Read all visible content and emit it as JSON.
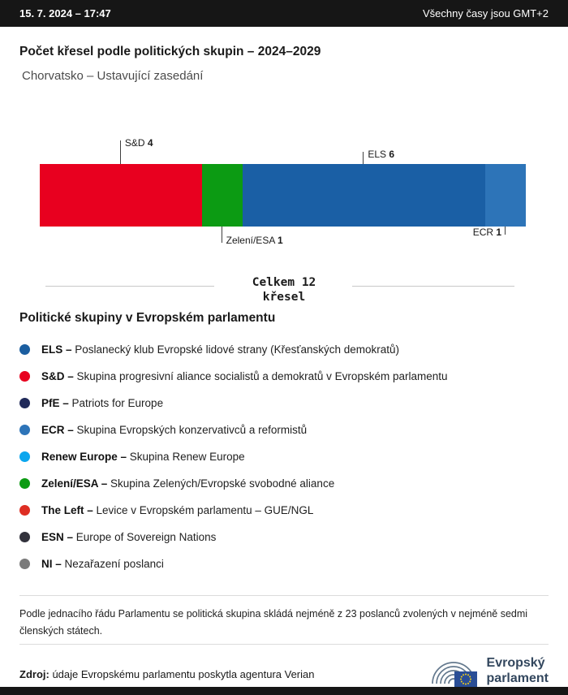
{
  "topbar": {
    "datetime": "15. 7. 2024 – 17:47",
    "timezone_note": "Všechny časy jsou GMT+2"
  },
  "header": {
    "title": "Počet křesel podle politických skupin – 2024–2029",
    "subtitle": "Chorvatsko – Ustavující zasedání"
  },
  "chart_data": {
    "type": "bar",
    "title": "Počet křesel podle politických skupin – 2024–2029",
    "subtitle": "Chorvatsko – Ustavující zasedání",
    "total_seats": 12,
    "total_label_lines": [
      "Celkem 12",
      "křesel"
    ],
    "segments": [
      {
        "name": "S&D",
        "seats": 4,
        "color": "#e8001f",
        "label_position": "above",
        "level": 2,
        "label_align": "left"
      },
      {
        "name": "Zelení/ESA",
        "seats": 1,
        "color": "#0c9b13",
        "label_position": "below",
        "level": 2,
        "label_align": "left"
      },
      {
        "name": "ELS",
        "seats": 6,
        "color": "#1a5fa5",
        "label_position": "above",
        "level": 1,
        "label_align": "left"
      },
      {
        "name": "ECR",
        "seats": 1,
        "color": "#2d74b8",
        "label_position": "below",
        "level": 1,
        "label_align": "right"
      }
    ]
  },
  "legend": {
    "title": "Politické skupiny v Evropském parlamentu",
    "groups": [
      {
        "abbr": "ELS –",
        "desc": "Poslanecký klub Evropské lidové strany (Křesťanských demokratů)",
        "color": "#1b5ea0"
      },
      {
        "abbr": "S&D –",
        "desc": "Skupina progresivní aliance socialistů a demokratů v Evropském parlamentu",
        "color": "#e8001f"
      },
      {
        "abbr": "PfE –",
        "desc": "Patriots for Europe",
        "color": "#202a5a"
      },
      {
        "abbr": "ECR –",
        "desc": "Skupina Evropských konzervativců a reformistů",
        "color": "#2d74b8"
      },
      {
        "abbr": "Renew Europe –",
        "desc": "Skupina Renew Europe",
        "color": "#0ba6ee"
      },
      {
        "abbr": "Zelení/ESA –",
        "desc": "Skupina Zelených/Evropské svobodné aliance",
        "color": "#0c9b13"
      },
      {
        "abbr": "The Left –",
        "desc": "Levice v Evropském parlamentu – GUE/NGL",
        "color": "#de2e23"
      },
      {
        "abbr": "ESN –",
        "desc": "Europe of Sovereign Nations",
        "color": "#32323c"
      },
      {
        "abbr": "NI –",
        "desc": "Nezařazení poslanci",
        "color": "#7a7a7a"
      }
    ]
  },
  "footnote": "Podle jednacího řádu Parlamentu se politická skupina skládá nejméně z 23 poslanců zvolených v nejméně sedmi členských státech.",
  "source": {
    "label": "Zdroj:",
    "text": "údaje Evropskému parlamentu poskytla agentura Verian"
  },
  "logo": {
    "line1": "Evropský",
    "line2": "parlament"
  }
}
